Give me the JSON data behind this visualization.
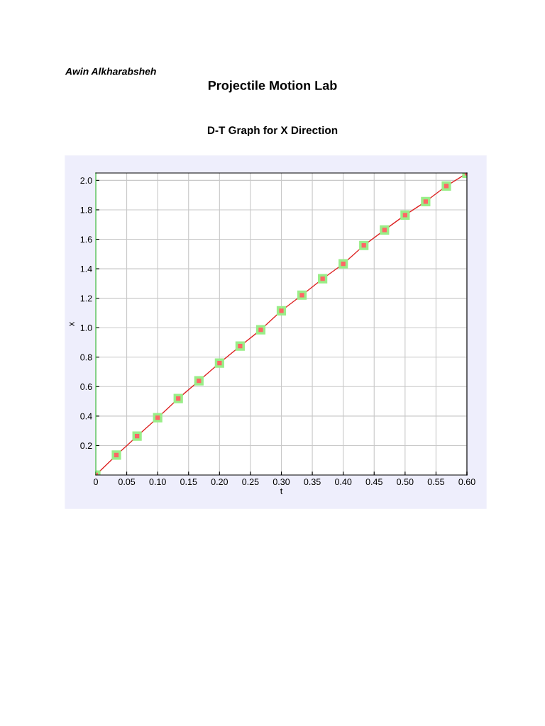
{
  "chart_data": {
    "type": "line",
    "title": "Projectile Motion Lab",
    "subtitle": "D-T Graph for X Direction",
    "xlabel": "t",
    "ylabel": "x",
    "annotations": [
      "Awin Alkharabsheh"
    ],
    "x": [
      0,
      0.0333,
      0.0667,
      0.1,
      0.1333,
      0.1667,
      0.2,
      0.2333,
      0.2667,
      0.3,
      0.3333,
      0.3667,
      0.4,
      0.4333,
      0.4667,
      0.5,
      0.5333,
      0.5667,
      0.6
    ],
    "series": [
      {
        "color": "#dd2222",
        "values": [
          0,
          0.135,
          0.264,
          0.389,
          0.519,
          0.639,
          0.76,
          0.875,
          0.986,
          1.115,
          1.221,
          1.332,
          1.433,
          1.558,
          1.663,
          1.764,
          1.856,
          1.962,
          2.048
        ]
      }
    ],
    "xlim": [
      0,
      0.6
    ],
    "ylim": [
      0,
      2.05
    ],
    "xticks": [
      0,
      0.05,
      {
        "value": 0.1,
        "label": "0.10"
      },
      0.15,
      {
        "value": 0.2,
        "label": "0.20"
      },
      0.25,
      {
        "value": 0.3,
        "label": "0.30"
      },
      0.35,
      {
        "value": 0.4,
        "label": "0.40"
      },
      0.45,
      {
        "value": 0.5,
        "label": "0.50"
      },
      0.55,
      {
        "value": 0.6,
        "label": "0.60"
      }
    ],
    "yticks": [
      0.2,
      0.4,
      0.6,
      0.8,
      {
        "value": 1.0,
        "label": "1.0"
      },
      1.2,
      1.4,
      1.6,
      1.8,
      {
        "value": 2.0,
        "label": "2.0"
      }
    ],
    "grid": true,
    "marker": "square",
    "line_style": "solid"
  }
}
